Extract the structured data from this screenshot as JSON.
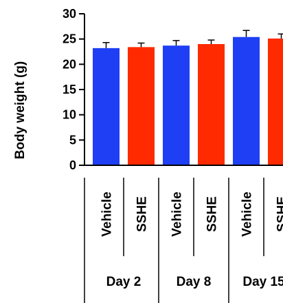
{
  "colors": {
    "vehicle": "#1f3ff5",
    "sshe": "#ff2a00",
    "axis": "#000000"
  },
  "chart_data": {
    "type": "bar",
    "ylabel": "Body weight (g)",
    "ylim": [
      0,
      30
    ],
    "yticks": [
      0,
      5,
      10,
      15,
      20,
      25,
      30
    ],
    "groups": [
      "Day 2",
      "Day 8",
      "Day 15"
    ],
    "series": [
      {
        "name": "Vehicle",
        "values": [
          23.2,
          23.7,
          25.4
        ],
        "errors": [
          1.1,
          1.0,
          1.3
        ]
      },
      {
        "name": "SSHE",
        "values": [
          23.4,
          24.0,
          25.1
        ],
        "errors": [
          0.8,
          0.8,
          0.9
        ]
      }
    ],
    "legend": "none"
  }
}
